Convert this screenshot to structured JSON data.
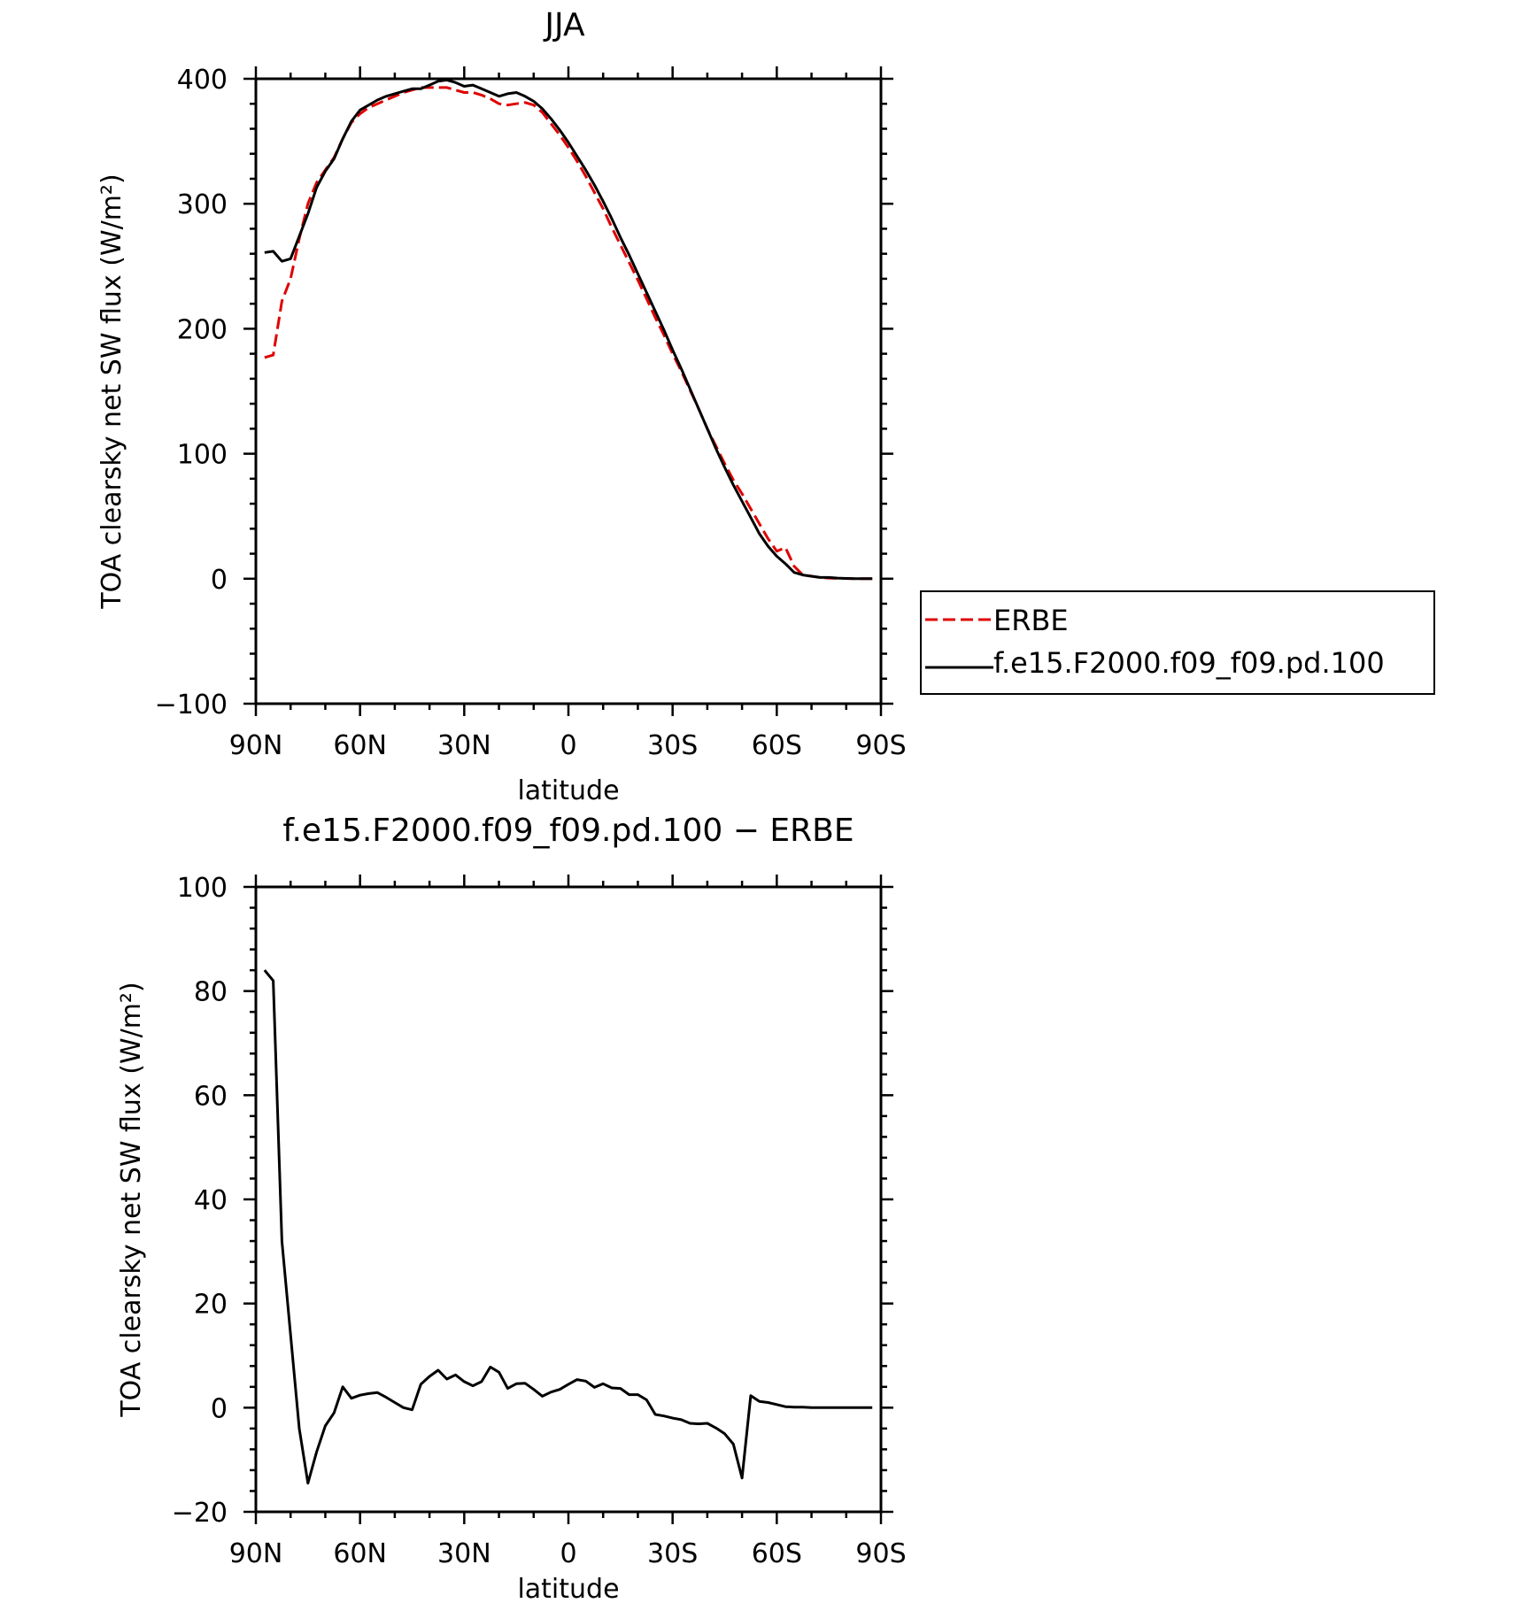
{
  "chart_data": [
    {
      "type": "line",
      "title": "JJA",
      "xlabel": "latitude",
      "ylabel": "TOA clearsky net SW flux (W/m²)",
      "xlim": [
        90,
        -90
      ],
      "ylim": [
        -100,
        400
      ],
      "yticks": [
        400,
        300,
        200,
        100,
        0,
        -100
      ],
      "xticks": [
        {
          "value": 90,
          "label": "90N"
        },
        {
          "value": 60,
          "label": "60N"
        },
        {
          "value": 30,
          "label": "30N"
        },
        {
          "value": 0,
          "label": "0"
        },
        {
          "value": -30,
          "label": "30S"
        },
        {
          "value": -60,
          "label": "60S"
        },
        {
          "value": -90,
          "label": "90S"
        }
      ],
      "legend_position": "right",
      "series": [
        {
          "name": "ERBE",
          "color": "#e00000",
          "dash": "dashed",
          "x": [
            87.5,
            85,
            82.5,
            80,
            77.5,
            75,
            72.5,
            70,
            67.5,
            65,
            62.5,
            60,
            57.5,
            55,
            52.5,
            50,
            47.5,
            45,
            42.5,
            40,
            37.5,
            35,
            32.5,
            30,
            27.5,
            25,
            22.5,
            20,
            17.5,
            15,
            12.5,
            10,
            7.5,
            5,
            2.5,
            0,
            -2.5,
            -5,
            -7.5,
            -10,
            -12.5,
            -15,
            -17.5,
            -20,
            -22.5,
            -25,
            -27.5,
            -30,
            -32.5,
            -35,
            -37.5,
            -40,
            -42.5,
            -45,
            -47.5,
            -50,
            -52.5,
            -55,
            -57.5,
            -60,
            -62.5,
            -65,
            -67.5,
            -70,
            -72.5,
            -75,
            -77.5,
            -80,
            -82.5,
            -85,
            -87.5
          ],
          "y": [
            177,
            179,
            222,
            240,
            272,
            300,
            317,
            327,
            337,
            352,
            365,
            372,
            377,
            380,
            383,
            386,
            389,
            391,
            393,
            393,
            393,
            393,
            391,
            389,
            389,
            387,
            384,
            380,
            379,
            380,
            381,
            379,
            373,
            364,
            355,
            345,
            334,
            322,
            309,
            296,
            281,
            267,
            253,
            239,
            224,
            209,
            195,
            180,
            166,
            151,
            136,
            120,
            106,
            92,
            79,
            68,
            56,
            44,
            32,
            22,
            25,
            10,
            3,
            2,
            1,
            0.5,
            0.3,
            0.2,
            0.1,
            0,
            0
          ]
        },
        {
          "name": "f.e15.F2000.f09_f09.pd.100",
          "color": "#000000",
          "dash": "solid",
          "x": [
            87.5,
            85,
            82.5,
            80,
            77.5,
            75,
            72.5,
            70,
            67.5,
            65,
            62.5,
            60,
            57.5,
            55,
            52.5,
            50,
            47.5,
            45,
            42.5,
            40,
            37.5,
            35,
            32.5,
            30,
            27.5,
            25,
            22.5,
            20,
            17.5,
            15,
            12.5,
            10,
            7.5,
            5,
            2.5,
            0,
            -2.5,
            -5,
            -7.5,
            -10,
            -12.5,
            -15,
            -17.5,
            -20,
            -22.5,
            -25,
            -27.5,
            -30,
            -32.5,
            -35,
            -37.5,
            -40,
            -42.5,
            -45,
            -47.5,
            -50,
            -52.5,
            -55,
            -57.5,
            -60,
            -62.5,
            -65,
            -67.5,
            -70,
            -72.5,
            -75,
            -77.5,
            -80,
            -82.5,
            -85,
            -87.5
          ],
          "y": [
            261,
            262,
            254,
            256,
            274,
            292,
            313,
            326,
            336,
            352,
            366,
            375,
            379,
            383,
            386,
            388,
            390,
            392,
            392,
            395,
            398,
            399,
            397,
            394,
            395,
            392,
            389,
            386,
            388,
            389,
            386,
            382,
            376,
            368,
            359,
            349,
            338,
            327,
            315,
            302,
            288,
            273,
            259,
            244,
            229,
            214,
            199,
            183,
            168,
            152,
            136,
            120,
            104,
            89,
            75,
            62,
            49,
            36,
            26,
            18,
            12,
            5,
            3,
            2,
            1,
            1,
            0.5,
            0.2,
            0.1,
            0,
            0
          ]
        }
      ]
    },
    {
      "type": "line",
      "title": "f.e15.F2000.f09_f09.pd.100 − ERBE",
      "xlabel": "latitude",
      "ylabel": "TOA clearsky net SW flux (W/m²)",
      "xlim": [
        90,
        -90
      ],
      "ylim": [
        -20,
        100
      ],
      "yticks": [
        100,
        80,
        60,
        40,
        20,
        0,
        -20
      ],
      "xticks": [
        {
          "value": 90,
          "label": "90N"
        },
        {
          "value": 60,
          "label": "60N"
        },
        {
          "value": 30,
          "label": "30N"
        },
        {
          "value": 0,
          "label": "0"
        },
        {
          "value": -30,
          "label": "30S"
        },
        {
          "value": -60,
          "label": "60S"
        },
        {
          "value": -90,
          "label": "90S"
        }
      ],
      "series": [
        {
          "color": "#000000",
          "dash": "solid",
          "x": [
            87.5,
            85,
            82.5,
            80,
            77.5,
            75,
            72.5,
            70,
            67.5,
            65,
            62.5,
            60,
            57.5,
            55,
            52.5,
            50,
            47.5,
            45,
            42.5,
            40,
            37.5,
            35,
            32.5,
            30,
            27.5,
            25,
            22.5,
            20,
            17.5,
            15,
            12.5,
            10,
            7.5,
            5,
            2.5,
            0,
            -2.5,
            -5,
            -7.5,
            -10,
            -12.5,
            -15,
            -17.5,
            -20,
            -22.5,
            -25,
            -27.5,
            -30,
            -32.5,
            -35,
            -37.5,
            -40,
            -42.5,
            -45,
            -47.5,
            -50,
            -52.5,
            -55,
            -57.5,
            -60,
            -62.5,
            -65,
            -67.5,
            -70,
            -72.5,
            -75,
            -77.5,
            -80,
            -82.5,
            -85,
            -87.5
          ],
          "y": [
            84,
            82,
            32,
            14,
            -4,
            -14.5,
            -8.5,
            -3.5,
            -1,
            4,
            1.8,
            2.4,
            2.7,
            2.9,
            2,
            1,
            0,
            -0.4,
            4.5,
            6,
            7.2,
            5.5,
            6.3,
            5,
            4.2,
            5,
            7.8,
            6.8,
            3.7,
            4.6,
            4.7,
            3.5,
            2.2,
            3,
            3.5,
            4.5,
            5.4,
            5.1,
            3.9,
            4.6,
            3.8,
            3.7,
            2.5,
            2.5,
            1.5,
            -1.3,
            -1.6,
            -2,
            -2.3,
            -3,
            -3.1,
            -3,
            -3.9,
            -5,
            -7,
            -13.5,
            2.3,
            1.2,
            1,
            0.6,
            0.2,
            0.1,
            0.1,
            0,
            0,
            0,
            0,
            0,
            0,
            0,
            0
          ]
        }
      ]
    }
  ]
}
